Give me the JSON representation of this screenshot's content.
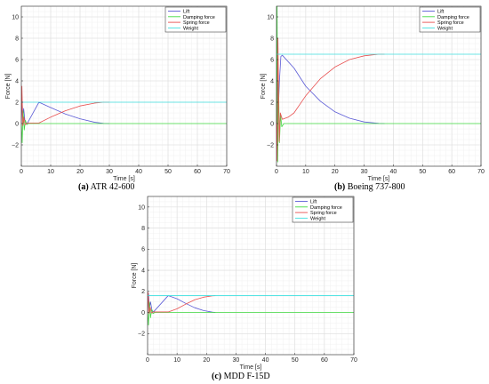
{
  "chart_data": [
    {
      "type": "line",
      "caption_label": "(a)",
      "caption_text": "ATR 42-600",
      "xlabel": "Time [s]",
      "ylabel": "Force [N]",
      "xlim": [
        0,
        70
      ],
      "ylim": [
        -4,
        11
      ],
      "xticks": [
        0,
        10,
        20,
        30,
        40,
        50,
        60,
        70
      ],
      "yticks": [
        -2,
        0,
        2,
        4,
        6,
        8,
        10
      ],
      "grid": true,
      "legend_position": "top-right",
      "series": [
        {
          "name": "Lift",
          "color": "#5b5bd6",
          "x": [
            0,
            0.3,
            0.5,
            0.8,
            1.2,
            1.6,
            2,
            6,
            10,
            15,
            20,
            25,
            28,
            30
          ],
          "y": [
            0,
            2.0,
            0.5,
            1.4,
            0.3,
            0.1,
            0.0,
            2.0,
            1.5,
            0.9,
            0.45,
            0.12,
            0.02,
            0
          ]
        },
        {
          "name": "Damping force",
          "color": "#44dd44",
          "x": [
            0,
            0.3,
            0.6,
            1.0,
            1.4,
            1.8,
            2.5,
            70
          ],
          "y": [
            0,
            -1.8,
            1.2,
            -0.6,
            0.3,
            -0.1,
            0,
            0
          ]
        },
        {
          "name": "Spring force",
          "color": "#e85050",
          "x": [
            0,
            0.2,
            0.5,
            0.9,
            1.3,
            2,
            6,
            10,
            15,
            20,
            25,
            28,
            30
          ],
          "y": [
            0,
            3.5,
            -0.2,
            0.6,
            -0.1,
            0.05,
            0.05,
            0.6,
            1.2,
            1.65,
            1.92,
            2.0,
            2.0
          ]
        },
        {
          "name": "Weight",
          "color": "#40e0e0",
          "x": [
            0,
            70
          ],
          "y": [
            2.0,
            2.0
          ]
        }
      ]
    },
    {
      "type": "line",
      "caption_label": "(b)",
      "caption_text": "Boeing 737-800",
      "xlabel": "Time [s]",
      "ylabel": "Force [N]",
      "xlim": [
        0,
        70
      ],
      "ylim": [
        -4,
        11
      ],
      "xticks": [
        0,
        10,
        20,
        30,
        40,
        50,
        60,
        70
      ],
      "yticks": [
        -2,
        0,
        2,
        4,
        6,
        8,
        10
      ],
      "grid": true,
      "legend_position": "top-right",
      "series": [
        {
          "name": "Lift",
          "color": "#5b5bd6",
          "x": [
            0,
            0.3,
            0.6,
            1.0,
            1.5,
            2,
            6,
            10,
            15,
            20,
            25,
            30,
            35,
            37
          ],
          "y": [
            0,
            8.0,
            1.0,
            4.0,
            6.3,
            6.4,
            5.2,
            3.5,
            2.1,
            1.1,
            0.5,
            0.15,
            0.02,
            0
          ]
        },
        {
          "name": "Damping force",
          "color": "#44dd44",
          "x": [
            0,
            0.2,
            0.4,
            0.7,
            1.0,
            1.4,
            1.8,
            2.5,
            70
          ],
          "y": [
            0,
            11.0,
            -3.6,
            4.0,
            -1.8,
            0.8,
            -0.3,
            0,
            0
          ]
        },
        {
          "name": "Spring force",
          "color": "#e85050",
          "x": [
            0,
            0.2,
            0.5,
            0.9,
            1.3,
            2,
            4,
            6,
            10,
            15,
            20,
            25,
            30,
            35,
            37
          ],
          "y": [
            0,
            -3.5,
            8.0,
            -1.7,
            1.0,
            0.4,
            0.6,
            1.0,
            2.6,
            4.2,
            5.3,
            6.0,
            6.35,
            6.5,
            6.5
          ]
        },
        {
          "name": "Weight",
          "color": "#40e0e0",
          "x": [
            0,
            70
          ],
          "y": [
            6.5,
            6.5
          ]
        }
      ]
    },
    {
      "type": "line",
      "caption_label": "(c)",
      "caption_text": "MDD F-15D",
      "xlabel": "Time [s]",
      "ylabel": "Force [N]",
      "xlim": [
        0,
        70
      ],
      "ylim": [
        -4,
        11
      ],
      "xticks": [
        0,
        10,
        20,
        30,
        40,
        50,
        60,
        70
      ],
      "yticks": [
        -2,
        0,
        2,
        4,
        6,
        8,
        10
      ],
      "grid": true,
      "legend_position": "top-right",
      "series": [
        {
          "name": "Lift",
          "color": "#5b5bd6",
          "x": [
            0,
            0.3,
            0.6,
            1.0,
            1.5,
            2,
            7,
            10,
            13,
            16,
            19,
            22,
            23
          ],
          "y": [
            0,
            1.8,
            0.4,
            1.0,
            0.2,
            0.05,
            1.6,
            1.3,
            0.85,
            0.45,
            0.18,
            0.03,
            0
          ]
        },
        {
          "name": "Damping force",
          "color": "#44dd44",
          "x": [
            0,
            0.3,
            0.6,
            1.0,
            1.4,
            1.8,
            2.5,
            70
          ],
          "y": [
            0,
            -1.2,
            1.0,
            -0.5,
            0.3,
            -0.1,
            0,
            0
          ]
        },
        {
          "name": "Spring force",
          "color": "#e85050",
          "x": [
            0,
            0.2,
            0.5,
            0.9,
            1.3,
            2,
            7,
            10,
            13,
            16,
            19,
            22,
            23
          ],
          "y": [
            0,
            1.9,
            -0.1,
            0.5,
            -0.05,
            0.05,
            0.05,
            0.35,
            0.8,
            1.2,
            1.45,
            1.58,
            1.6
          ]
        },
        {
          "name": "Weight",
          "color": "#40e0e0",
          "x": [
            0,
            70
          ],
          "y": [
            1.6,
            1.6
          ]
        }
      ]
    }
  ]
}
